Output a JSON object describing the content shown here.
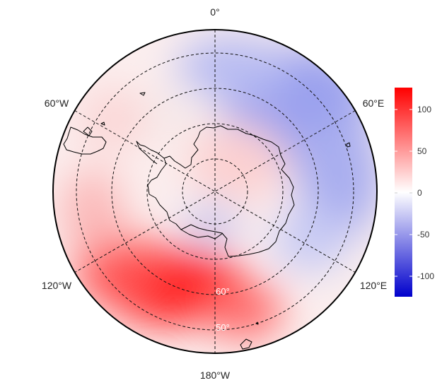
{
  "map": {
    "projection": "south-polar-stereographic",
    "longitude_labels": {
      "top": "0°",
      "upper_left": "60°W",
      "upper_right": "60°E",
      "lower_left": "120°W",
      "lower_right": "120°E",
      "bottom": "180°W"
    },
    "latitude_labels": {
      "inner": "60°",
      "outer": "50°"
    },
    "coastline_color": "#000000",
    "gridline_style": "dashed"
  },
  "colorbar": {
    "ticks": [
      "100",
      "50",
      "0",
      "-50",
      "-100"
    ],
    "range": [
      -125,
      125
    ],
    "colors": {
      "max": "#ff0000",
      "mid": "#ffffff",
      "min": "#0000cc"
    }
  }
}
